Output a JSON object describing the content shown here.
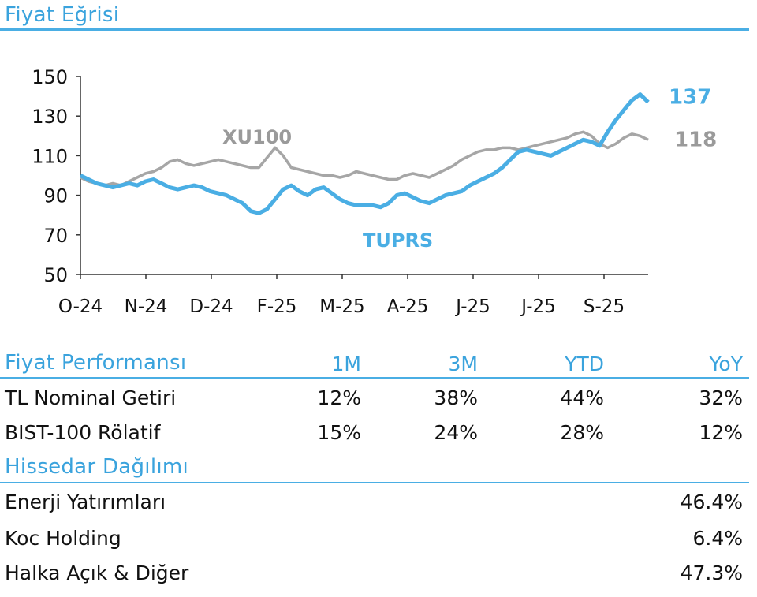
{
  "header": {
    "title": "Fiyat Eğrisi"
  },
  "chart_data": {
    "type": "line",
    "x_ticks": [
      "O-24",
      "N-24",
      "D-24",
      "F-25",
      "M-25",
      "A-25",
      "J-25",
      "J-25",
      "S-25"
    ],
    "y_ticks": [
      50,
      70,
      90,
      110,
      130,
      150
    ],
    "ylim": [
      50,
      150
    ],
    "series": [
      {
        "name": "TUPRS",
        "color": "#4aaee4",
        "end_label": "137",
        "values": [
          100,
          98,
          96,
          95,
          94,
          95,
          96,
          95,
          97,
          98,
          96,
          94,
          93,
          94,
          95,
          94,
          92,
          91,
          90,
          88,
          86,
          82,
          81,
          83,
          88,
          93,
          95,
          92,
          90,
          93,
          94,
          91,
          88,
          86,
          85,
          85,
          85,
          84,
          86,
          90,
          91,
          89,
          87,
          86,
          88,
          90,
          91,
          92,
          95,
          97,
          99,
          101,
          104,
          108,
          112,
          113,
          112,
          111,
          110,
          112,
          114,
          116,
          118,
          117,
          115,
          122,
          128,
          133,
          138,
          141,
          137
        ]
      },
      {
        "name": "XU100",
        "color": "#a6a6a6",
        "end_label": "118",
        "values": [
          99,
          97,
          96,
          95,
          96,
          95,
          97,
          99,
          101,
          102,
          104,
          107,
          108,
          106,
          105,
          106,
          107,
          108,
          107,
          106,
          105,
          104,
          104,
          109,
          114,
          110,
          104,
          103,
          102,
          101,
          100,
          100,
          99,
          100,
          102,
          101,
          100,
          99,
          98,
          98,
          100,
          101,
          100,
          99,
          101,
          103,
          105,
          108,
          110,
          112,
          113,
          113,
          114,
          114,
          113,
          114,
          115,
          116,
          117,
          118,
          119,
          121,
          122,
          120,
          116,
          114,
          116,
          119,
          121,
          120,
          118
        ]
      }
    ],
    "annotations": [
      "XU100",
      "TUPRS"
    ],
    "grid": false,
    "title": "Fiyat Eğrisi",
    "xlabel": "",
    "ylabel": ""
  },
  "performance": {
    "title": "Fiyat Performansı",
    "columns": [
      "1M",
      "3M",
      "YTD",
      "YoY"
    ],
    "rows": [
      {
        "label": "TL Nominal Getiri",
        "values": [
          "12%",
          "38%",
          "44%",
          "32%"
        ]
      },
      {
        "label": "BIST-100 Rölatif",
        "values": [
          "15%",
          "24%",
          "28%",
          "12%"
        ]
      }
    ]
  },
  "shareholders": {
    "title": "Hissedar Dağılımı",
    "rows": [
      {
        "label": "Enerji Yatırımları",
        "value": "46.4%"
      },
      {
        "label": "Koc Holding",
        "value": "6.4%"
      },
      {
        "label": "Halka Açık & Diğer",
        "value": "47.3%"
      }
    ]
  }
}
